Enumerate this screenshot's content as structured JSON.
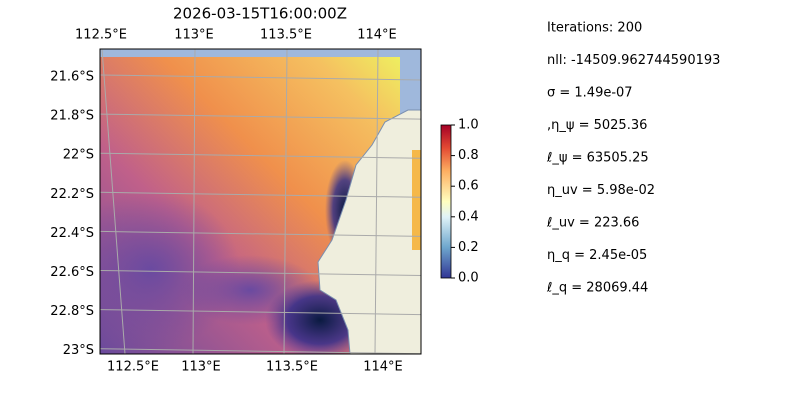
{
  "title": "2026-03-15T16:00:00Z",
  "map": {
    "lon_labels_top": [
      "112.5°E",
      "113°E",
      "113.5°E",
      "114°E"
    ],
    "lon_labels_bottom": [
      "112.5°E",
      "113°E",
      "113.5°E",
      "114°E"
    ],
    "lat_labels": [
      "21.6°S",
      "21.8°S",
      "22°S",
      "22.2°S",
      "22.4°S",
      "22.6°S",
      "22.8°S",
      "23°S"
    ]
  },
  "colorbar": {
    "ticks": [
      "0.0",
      "0.2",
      "0.4",
      "0.6",
      "0.8",
      "1.0"
    ]
  },
  "info": [
    "Iterations: 200",
    "nll: -14509.962744590193",
    "σ = 1.49e-07",
    ",η_ψ = 5025.36",
    "ℓ_ψ = 63505.25",
    "η_uv = 5.98e-02",
    "ℓ_uv = 223.66",
    "η_q = 2.45e-05",
    "ℓ_q = 28069.44"
  ]
}
